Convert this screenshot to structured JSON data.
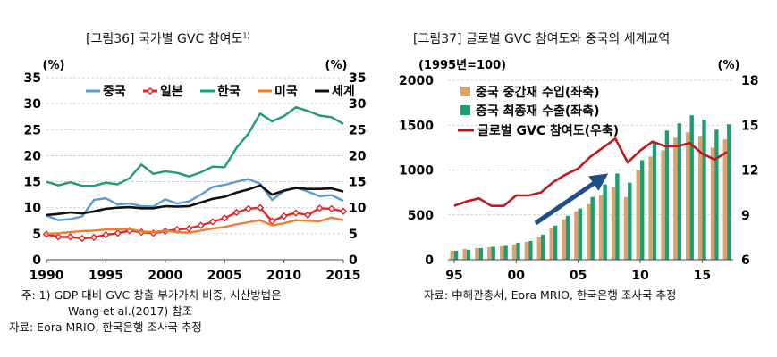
{
  "chart_data": [
    {
      "type": "line",
      "title": "[그림36] 국가별 GVC 참여도",
      "title_sup": "1)",
      "ylabel_left": "(%)",
      "ylabel_right": "(%)",
      "ylim": [
        0,
        35
      ],
      "yticks": [
        0,
        5,
        10,
        15,
        20,
        25,
        30,
        35
      ],
      "xlim": [
        1990,
        2015
      ],
      "xticks": [
        1990,
        1995,
        2000,
        2005,
        2010,
        2015
      ],
      "x": [
        1990,
        1991,
        1992,
        1993,
        1994,
        1995,
        1996,
        1997,
        1998,
        1999,
        2000,
        2001,
        2002,
        2003,
        2004,
        2005,
        2006,
        2007,
        2008,
        2009,
        2010,
        2011,
        2012,
        2013,
        2014,
        2015
      ],
      "series": [
        {
          "name": "중국",
          "color": "#5b9bd5",
          "marker": "none",
          "values": [
            8.5,
            7.6,
            7.8,
            8.3,
            11.5,
            11.8,
            10.6,
            10.8,
            10.3,
            10.2,
            11.6,
            10.8,
            11.2,
            12.5,
            14.0,
            14.4,
            15.0,
            15.5,
            14.6,
            11.5,
            13.2,
            13.9,
            13.1,
            12.2,
            12.4,
            11.3
          ]
        },
        {
          "name": "일본",
          "color": "#e0242a",
          "marker": "diamond",
          "values": [
            4.9,
            4.4,
            4.4,
            4.1,
            4.3,
            4.8,
            5.1,
            5.6,
            5.3,
            5.1,
            5.5,
            5.8,
            6.0,
            6.6,
            7.3,
            8.0,
            9.1,
            9.8,
            10.0,
            7.4,
            8.4,
            9.0,
            8.6,
            9.9,
            9.8,
            9.3
          ]
        },
        {
          "name": "한국",
          "color": "#1a9e73",
          "marker": "none",
          "values": [
            15.0,
            14.3,
            14.9,
            14.2,
            14.2,
            14.8,
            14.5,
            15.7,
            18.3,
            16.5,
            17.0,
            16.7,
            16.0,
            16.8,
            17.9,
            17.8,
            21.5,
            24.2,
            28.1,
            26.6,
            27.6,
            29.3,
            28.6,
            27.7,
            27.4,
            26.1
          ]
        },
        {
          "name": "미국",
          "color": "#ed7d31",
          "marker": "none",
          "values": [
            5.0,
            5.1,
            5.3,
            5.5,
            5.6,
            5.8,
            5.8,
            5.9,
            5.4,
            5.3,
            5.6,
            5.3,
            5.2,
            5.6,
            6.0,
            6.3,
            6.8,
            7.2,
            7.6,
            6.6,
            7.0,
            7.6,
            7.5,
            7.4,
            8.1,
            7.6
          ]
        },
        {
          "name": "세계",
          "color": "#111111",
          "marker": "none",
          "values": [
            8.6,
            8.8,
            9.1,
            8.9,
            9.3,
            9.8,
            10.0,
            10.1,
            9.9,
            9.9,
            10.3,
            10.2,
            10.3,
            11.0,
            11.7,
            12.1,
            12.9,
            13.5,
            14.3,
            12.5,
            13.3,
            13.8,
            13.6,
            13.6,
            13.7,
            13.1
          ]
        }
      ],
      "notes": [
        "주:  1) GDP 대비 GVC 창출 부가가치 비중, 시산방법은",
        "Wang et al.(2017) 참조",
        "자료: Eora MRIO, 한국은행 조사국 추정"
      ]
    },
    {
      "type": "bar",
      "title": "[그림37] 글로벌 GVC 참여도와 중국의 세계교역",
      "ylabel_left": "(1995년=100)",
      "ylabel_right": "(%)",
      "ylim_left": [
        0,
        2000
      ],
      "yticks_left": [
        0,
        500,
        1000,
        1500,
        2000
      ],
      "ylim_right": [
        6,
        18
      ],
      "yticks_right": [
        6,
        9,
        12,
        15,
        18
      ],
      "xlim": [
        1995,
        2017
      ],
      "xticks": [
        1995,
        2000,
        2005,
        2010,
        2015
      ],
      "xtick_labels": [
        "95",
        "00",
        "05",
        "10",
        "15"
      ],
      "x": [
        1995,
        1996,
        1997,
        1998,
        1999,
        2000,
        2001,
        2002,
        2003,
        2004,
        2005,
        2006,
        2007,
        2008,
        2009,
        2010,
        2011,
        2012,
        2013,
        2014,
        2015,
        2016,
        2017
      ],
      "series": [
        {
          "name": "중국 중간재 수입(좌축)",
          "color": "#d9a36c",
          "axis": "left",
          "values": [
            100,
            120,
            130,
            140,
            150,
            170,
            200,
            250,
            350,
            450,
            540,
            620,
            720,
            810,
            700,
            1000,
            1150,
            1220,
            1360,
            1420,
            1380,
            1250,
            1340
          ]
        },
        {
          "name": "중국 최종재 수출(좌축)",
          "color": "#1a9e73",
          "axis": "left",
          "values": [
            100,
            110,
            130,
            145,
            155,
            190,
            210,
            280,
            380,
            490,
            570,
            700,
            840,
            960,
            860,
            1110,
            1310,
            1440,
            1520,
            1610,
            1560,
            1450,
            1510
          ]
        },
        {
          "name": "글로벌 GVC 참여도(우축)",
          "color": "#c0181f",
          "axis": "right",
          "render": "line",
          "values": [
            9.6,
            9.9,
            10.1,
            9.6,
            9.6,
            10.3,
            10.3,
            10.5,
            11.2,
            11.7,
            12.1,
            12.9,
            13.5,
            14.1,
            12.5,
            13.3,
            13.9,
            13.6,
            13.6,
            13.8,
            13.1,
            12.7,
            13.2
          ]
        }
      ],
      "notes": [
        "자료: 中해관총서, Eora MRIO, 한국은행 조사국 추정"
      ]
    }
  ]
}
